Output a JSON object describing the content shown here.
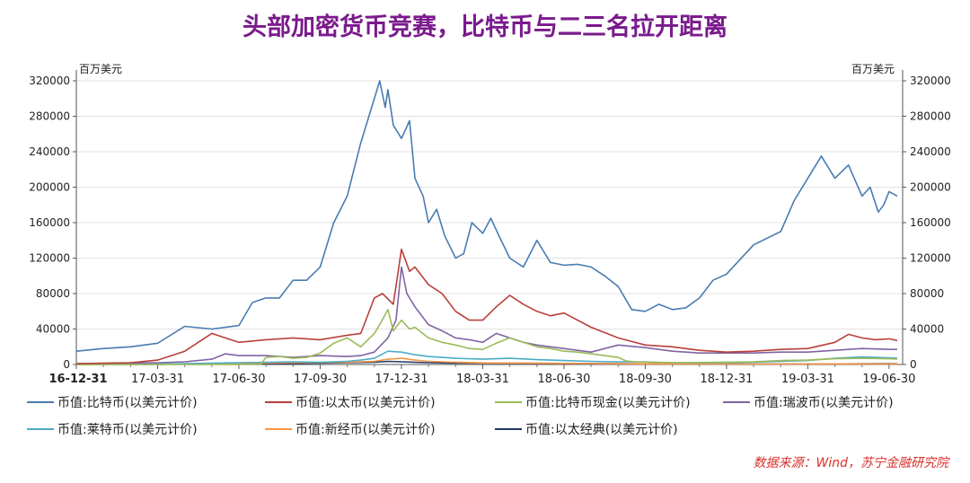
{
  "title": "头部加密货币竞赛，比特币与二三名拉开距离",
  "source": "数据来源：Wind，苏宁金融研究院",
  "chart_data": {
    "type": "line",
    "left_unit": "百万美元",
    "right_unit": "百万美元",
    "x_tick_labels": [
      "16-12-31",
      "17-03-31",
      "17-06-30",
      "17-09-30",
      "17-12-31",
      "18-03-31",
      "18-06-30",
      "18-09-30",
      "18-12-31",
      "19-03-31",
      "19-06-30"
    ],
    "y_ticks": [
      0,
      40000,
      80000,
      120000,
      160000,
      200000,
      240000,
      280000,
      320000
    ],
    "y_tick_labels": [
      "0",
      "40000",
      "80000",
      "120000",
      "160000",
      "200000",
      "240000",
      "280000",
      "320000"
    ],
    "ylim": [
      0,
      320000
    ],
    "x_months_range": [
      0,
      30.5
    ],
    "series": [
      {
        "name": "币值:比特币(以美元计价)",
        "color": "#4a7bb0",
        "x": [
          0,
          1,
          2,
          3,
          4,
          5,
          6,
          6.5,
          7,
          7.5,
          8,
          8.5,
          9,
          9.5,
          10,
          10.5,
          11,
          11.2,
          11.4,
          11.5,
          11.7,
          12,
          12.3,
          12.5,
          12.8,
          13,
          13.3,
          13.6,
          14,
          14.3,
          14.6,
          15,
          15.3,
          15.6,
          16,
          16.5,
          17,
          17.5,
          18,
          18.5,
          19,
          19.5,
          20,
          20.5,
          21,
          21.5,
          22,
          22.5,
          23,
          23.5,
          24,
          25,
          26,
          26.5,
          27,
          27.5,
          28,
          28.5,
          29,
          29.3,
          29.6,
          29.8,
          30,
          30.3
        ],
        "y": [
          15000,
          18000,
          20000,
          24000,
          43000,
          40000,
          44000,
          70000,
          75000,
          75000,
          95000,
          95000,
          110000,
          160000,
          190000,
          250000,
          300000,
          320000,
          290000,
          310000,
          270000,
          255000,
          275000,
          210000,
          190000,
          160000,
          175000,
          145000,
          120000,
          125000,
          160000,
          148000,
          165000,
          145000,
          120000,
          110000,
          140000,
          115000,
          112000,
          113000,
          110000,
          100000,
          88000,
          62000,
          60000,
          68000,
          62000,
          64000,
          75000,
          95000,
          102000,
          135000,
          150000,
          185000,
          210000,
          235000,
          210000,
          225000,
          190000,
          200000,
          172000,
          180000,
          195000,
          190000
        ]
      },
      {
        "name": "币值:以太币(以美元计价)",
        "color": "#b8403a",
        "x": [
          0,
          2,
          3,
          4,
          5,
          5.5,
          6,
          7,
          8,
          9,
          10,
          10.5,
          11,
          11.3,
          11.7,
          12,
          12.3,
          12.5,
          13,
          13.5,
          14,
          14.5,
          15,
          15.5,
          16,
          16.5,
          17,
          17.5,
          18,
          19,
          20,
          21,
          22,
          23,
          24,
          25,
          26,
          27,
          28,
          28.5,
          29,
          29.5,
          30,
          30.3
        ],
        "y": [
          1000,
          2000,
          5000,
          15000,
          35000,
          30000,
          25000,
          28000,
          30000,
          28000,
          33000,
          35000,
          75000,
          80000,
          68000,
          130000,
          105000,
          110000,
          90000,
          80000,
          60000,
          50000,
          50000,
          65000,
          78000,
          68000,
          60000,
          55000,
          58000,
          42000,
          30000,
          22000,
          20000,
          16000,
          14000,
          15000,
          17000,
          18000,
          25000,
          34000,
          30000,
          28000,
          29000,
          27000
        ]
      },
      {
        "name": "币值:比特币现金(以美元计价)",
        "color": "#9bbb59",
        "x": [
          0,
          6.8,
          7,
          7.5,
          8,
          8.5,
          9,
          9.5,
          10,
          10.5,
          11,
          11.2,
          11.5,
          11.7,
          12,
          12.3,
          12.5,
          13,
          13.5,
          14,
          14.5,
          15,
          15.5,
          16,
          16.5,
          17,
          17.5,
          18,
          18.5,
          19,
          19.5,
          20,
          20.3,
          20.6,
          21,
          22,
          23,
          24,
          25,
          26,
          27,
          28,
          29,
          30,
          30.3
        ],
        "y": [
          0,
          0,
          8000,
          9000,
          7000,
          8000,
          13000,
          24000,
          30000,
          20000,
          35000,
          45000,
          62000,
          38000,
          50000,
          40000,
          42000,
          30000,
          25000,
          22000,
          18000,
          17000,
          24000,
          30000,
          25000,
          20000,
          18000,
          15000,
          14000,
          12000,
          10000,
          8000,
          4000,
          3000,
          2500,
          2000,
          2200,
          2600,
          3000,
          4500,
          5000,
          6500,
          7000,
          6500,
          6200
        ]
      },
      {
        "name": "币值:瑞波币(以美元计价)",
        "color": "#8064a2",
        "x": [
          0,
          3,
          4,
          5,
          5.5,
          6,
          7,
          8,
          9,
          10,
          10.5,
          11,
          11.5,
          11.8,
          12,
          12.2,
          12.5,
          13,
          13.5,
          14,
          14.5,
          15,
          15.5,
          16,
          16.5,
          17,
          17.5,
          18,
          18.5,
          19,
          20,
          21,
          22,
          23,
          24,
          25,
          26,
          27,
          28,
          29,
          30,
          30.3
        ],
        "y": [
          1000,
          2000,
          3000,
          6000,
          12000,
          10000,
          10000,
          8000,
          10000,
          9000,
          10000,
          14000,
          30000,
          50000,
          110000,
          80000,
          65000,
          45000,
          38000,
          30000,
          28000,
          25000,
          35000,
          30000,
          25000,
          22000,
          20000,
          18000,
          16000,
          14000,
          22000,
          19000,
          15000,
          13000,
          13000,
          13000,
          14000,
          14000,
          16000,
          18000,
          17000,
          17000
        ]
      },
      {
        "name": "币值:莱特币(以美元计价)",
        "color": "#4bacc6",
        "x": [
          0,
          3,
          5,
          6,
          7,
          8,
          9,
          10,
          10.5,
          11,
          11.5,
          12,
          12.5,
          13,
          14,
          15,
          16,
          17,
          18,
          19,
          20,
          21,
          22,
          23,
          24,
          25,
          26,
          27,
          28,
          29,
          30,
          30.3
        ],
        "y": [
          300,
          500,
          1500,
          2000,
          2500,
          3000,
          2500,
          3500,
          5000,
          7000,
          15000,
          14000,
          11000,
          9000,
          7000,
          6000,
          7000,
          5500,
          4500,
          3500,
          3000,
          2800,
          2000,
          1800,
          2000,
          2500,
          3500,
          4500,
          7000,
          8500,
          7500,
          7000
        ]
      },
      {
        "name": "币值:新经币(以美元计价)",
        "color": "#f79646",
        "x": [
          0,
          5,
          6,
          8,
          10,
          11,
          11.5,
          12,
          12.5,
          13,
          14,
          15,
          16,
          18,
          20,
          22,
          24,
          26,
          28,
          30,
          30.3
        ],
        "y": [
          100,
          300,
          1500,
          2000,
          2500,
          3500,
          6000,
          7000,
          5000,
          3500,
          2500,
          1800,
          1500,
          1200,
          800,
          600,
          500,
          500,
          700,
          600,
          600
        ]
      },
      {
        "name": "币值:以太经典(以美元计价)",
        "color": "#1f3864",
        "x": [
          0,
          3,
          5,
          6,
          8,
          10,
          11,
          11.5,
          12,
          12.5,
          13,
          14,
          16,
          18,
          20,
          22,
          24,
          26,
          28,
          30,
          30.3
        ],
        "y": [
          100,
          200,
          1000,
          1500,
          1200,
          2000,
          2500,
          3500,
          3000,
          2500,
          2000,
          1500,
          1500,
          1200,
          1000,
          500,
          400,
          500,
          700,
          900,
          800
        ]
      }
    ]
  }
}
